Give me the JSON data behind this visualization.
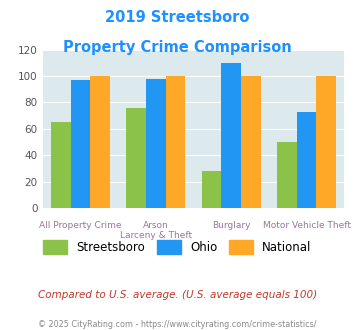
{
  "title_line1": "2019 Streetsboro",
  "title_line2": "Property Crime Comparison",
  "x_labels_top": [
    "All Property Crime",
    "Arson",
    "Burglary",
    "Motor Vehicle Theft"
  ],
  "x_labels_bottom": [
    "",
    "Larceny & Theft",
    "",
    ""
  ],
  "streetsboro": [
    65,
    76,
    28,
    50
  ],
  "ohio": [
    97,
    98,
    110,
    73
  ],
  "national": [
    100,
    100,
    100,
    100
  ],
  "streetsboro_color": "#8bc34a",
  "ohio_color": "#2196f3",
  "national_color": "#ffa726",
  "ylim": [
    0,
    120
  ],
  "yticks": [
    0,
    20,
    40,
    60,
    80,
    100,
    120
  ],
  "title_color": "#1e90ff",
  "bg_color": "#dce9ed",
  "footnote": "Compared to U.S. average. (U.S. average equals 100)",
  "copyright": "© 2025 CityRating.com - https://www.cityrating.com/crime-statistics/",
  "footnote_color": "#c0392b",
  "copyright_color": "#888888",
  "label_color": "#997799"
}
